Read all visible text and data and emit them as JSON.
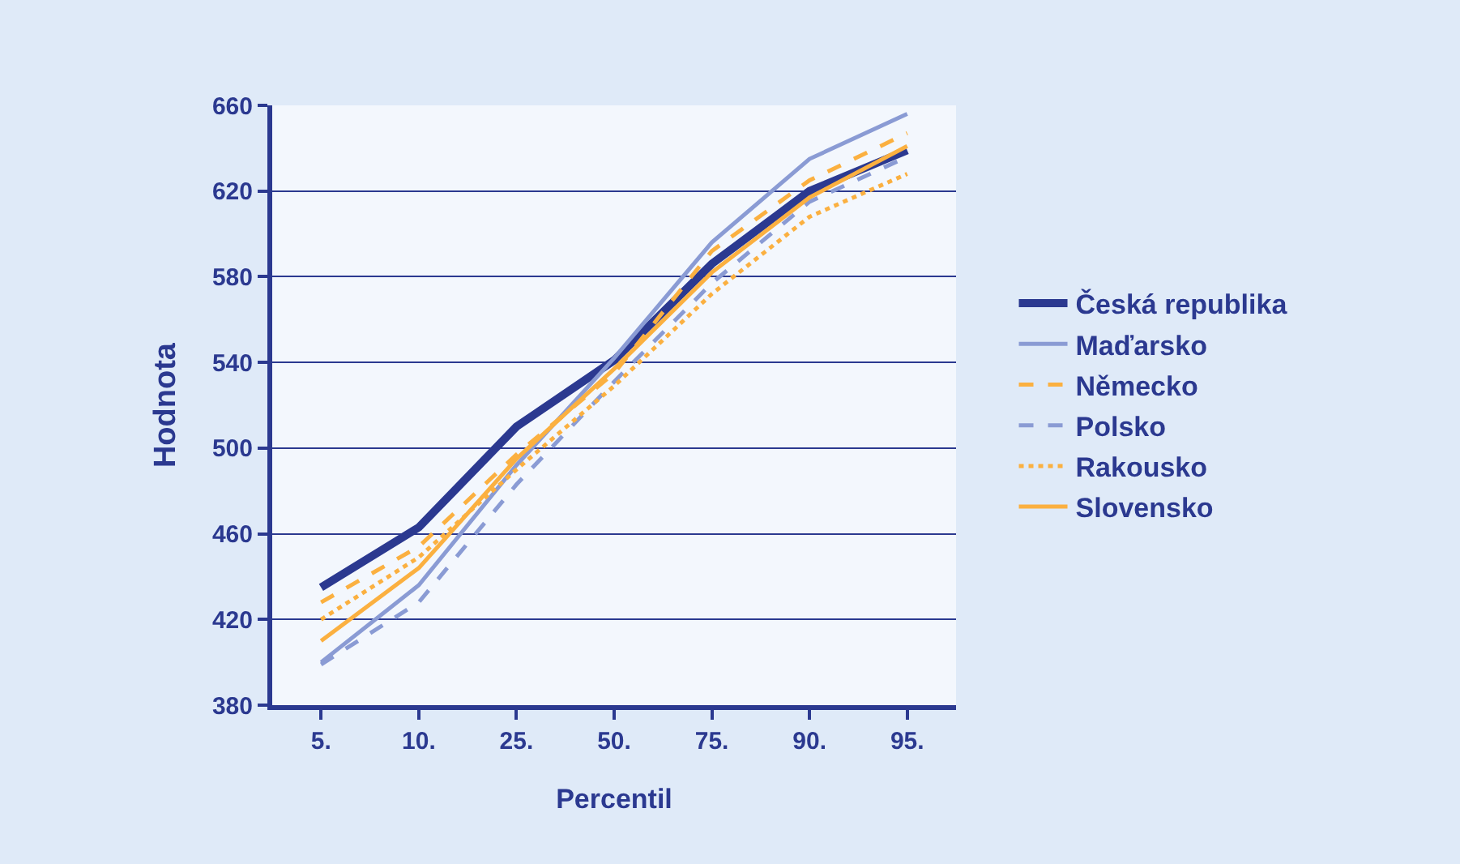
{
  "chart_data": {
    "type": "line",
    "xlabel": "Percentil",
    "ylabel": "Hodnota",
    "categories": [
      "5.",
      "10.",
      "25.",
      "50.",
      "75.",
      "90.",
      "95."
    ],
    "series": [
      {
        "name": "Česká republika",
        "color": "#2b3990",
        "line_style": "solid",
        "values": [
          435,
          463,
          510,
          541,
          586,
          620,
          639
        ]
      },
      {
        "name": "Maďarsko",
        "color": "#8a9bd4",
        "line_style": "solid",
        "values": [
          400,
          436,
          492,
          542,
          596,
          635,
          656
        ]
      },
      {
        "name": "Německo",
        "color": "#fbb040",
        "line_style": "dashed",
        "values": [
          428,
          454,
          497,
          535,
          592,
          625,
          647
        ]
      },
      {
        "name": "Polsko",
        "color": "#8a9bd4",
        "line_style": "dashed",
        "values": [
          399,
          428,
          483,
          531,
          577,
          615,
          636
        ]
      },
      {
        "name": "Rakousko",
        "color": "#fbb040",
        "line_style": "dotted",
        "values": [
          420,
          449,
          490,
          529,
          572,
          608,
          628
        ]
      },
      {
        "name": "Slovensko",
        "color": "#fbb040",
        "line_style": "solid",
        "values": [
          410,
          444,
          495,
          537,
          582,
          617,
          641
        ]
      }
    ],
    "ylim": [
      380,
      660
    ],
    "yticks": [
      380,
      420,
      460,
      500,
      540,
      580,
      620,
      660
    ],
    "grid": "y",
    "legend": "right",
    "marker": "none"
  }
}
